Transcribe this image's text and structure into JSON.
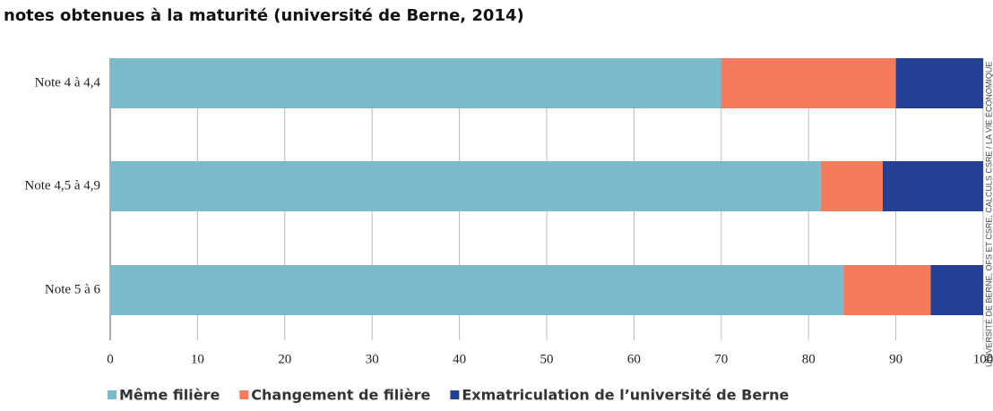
{
  "chart_data": {
    "type": "stacked-barh",
    "title": "notes obtenues à la maturité (université de Berne, 2014)",
    "source": "UNIVERSITÉ DE BERNE, OFS ET CSRE, CALCULS CSRE / LA VIE ÉCONOMIQUE",
    "categories": [
      "Note 4 à 4,4",
      "Note 4,5 à 4,9",
      "Note 5 à 6"
    ],
    "series": [
      {
        "name": "Même filière",
        "color": "#7bbacd",
        "values": [
          70,
          81.4,
          84
        ]
      },
      {
        "name": "Changement de filière",
        "color": "#f47b5c",
        "values": [
          20,
          7.1,
          10
        ]
      },
      {
        "name": "Exmatriculation de l’université de Berne",
        "color": "#233f96",
        "values": [
          10,
          11.5,
          6
        ]
      }
    ],
    "xlim": [
      0,
      100
    ],
    "xticks": [
      0,
      10,
      20,
      30,
      40,
      50,
      60,
      70,
      80,
      90,
      100
    ],
    "grid": true
  }
}
